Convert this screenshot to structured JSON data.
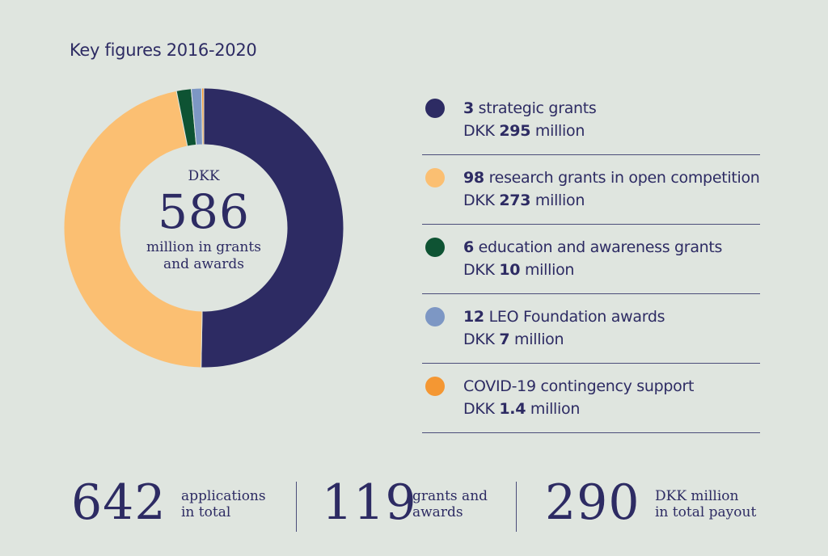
{
  "title": "Key figures 2016-2020",
  "center": {
    "prefix": "DKK",
    "value": "586",
    "line1": "million in grants",
    "line2": "and awards"
  },
  "legend": [
    {
      "count": "3",
      "label": " strategic grants",
      "amount_prefix": "DKK ",
      "amount": "295",
      "amount_suffix": " million",
      "color": "#2d2b63"
    },
    {
      "count": "98",
      "label": " research grants in open competition",
      "amount_prefix": "DKK ",
      "amount": "273",
      "amount_suffix": " million",
      "color": "#fbbf72"
    },
    {
      "count": "6",
      "label": " education and awareness grants",
      "amount_prefix": "DKK ",
      "amount": "10",
      "amount_suffix": " million",
      "color": "#0e5333"
    },
    {
      "count": "12",
      "label": " LEO Foundation awards",
      "amount_prefix": "DKK ",
      "amount": "7",
      "amount_suffix": " million",
      "color": "#7d97c4"
    },
    {
      "count": "",
      "label": "COVID-19 contingency support",
      "amount_prefix": "DKK ",
      "amount": "1.4",
      "amount_suffix": " million",
      "color": "#f49733"
    }
  ],
  "stats": [
    {
      "value": "642",
      "line1": "applications",
      "line2": "in total"
    },
    {
      "value": "119",
      "line1": "grants and",
      "line2": "awards"
    },
    {
      "value": "290",
      "line1": "DKK million",
      "line2": "in total payout"
    }
  ],
  "chart_data": {
    "type": "pie",
    "categories": [
      "strategic grants",
      "research grants in open competition",
      "education and awareness grants",
      "LEO Foundation awards",
      "COVID-19 contingency support"
    ],
    "values": [
      295,
      273,
      10,
      7,
      1.4
    ],
    "colors": [
      "#2d2b63",
      "#fbbf72",
      "#0e5333",
      "#7d97c4",
      "#f49733"
    ],
    "donut": true,
    "start_angle_deg": 0,
    "direction": "clockwise",
    "title": "Key figures 2016-2020"
  }
}
